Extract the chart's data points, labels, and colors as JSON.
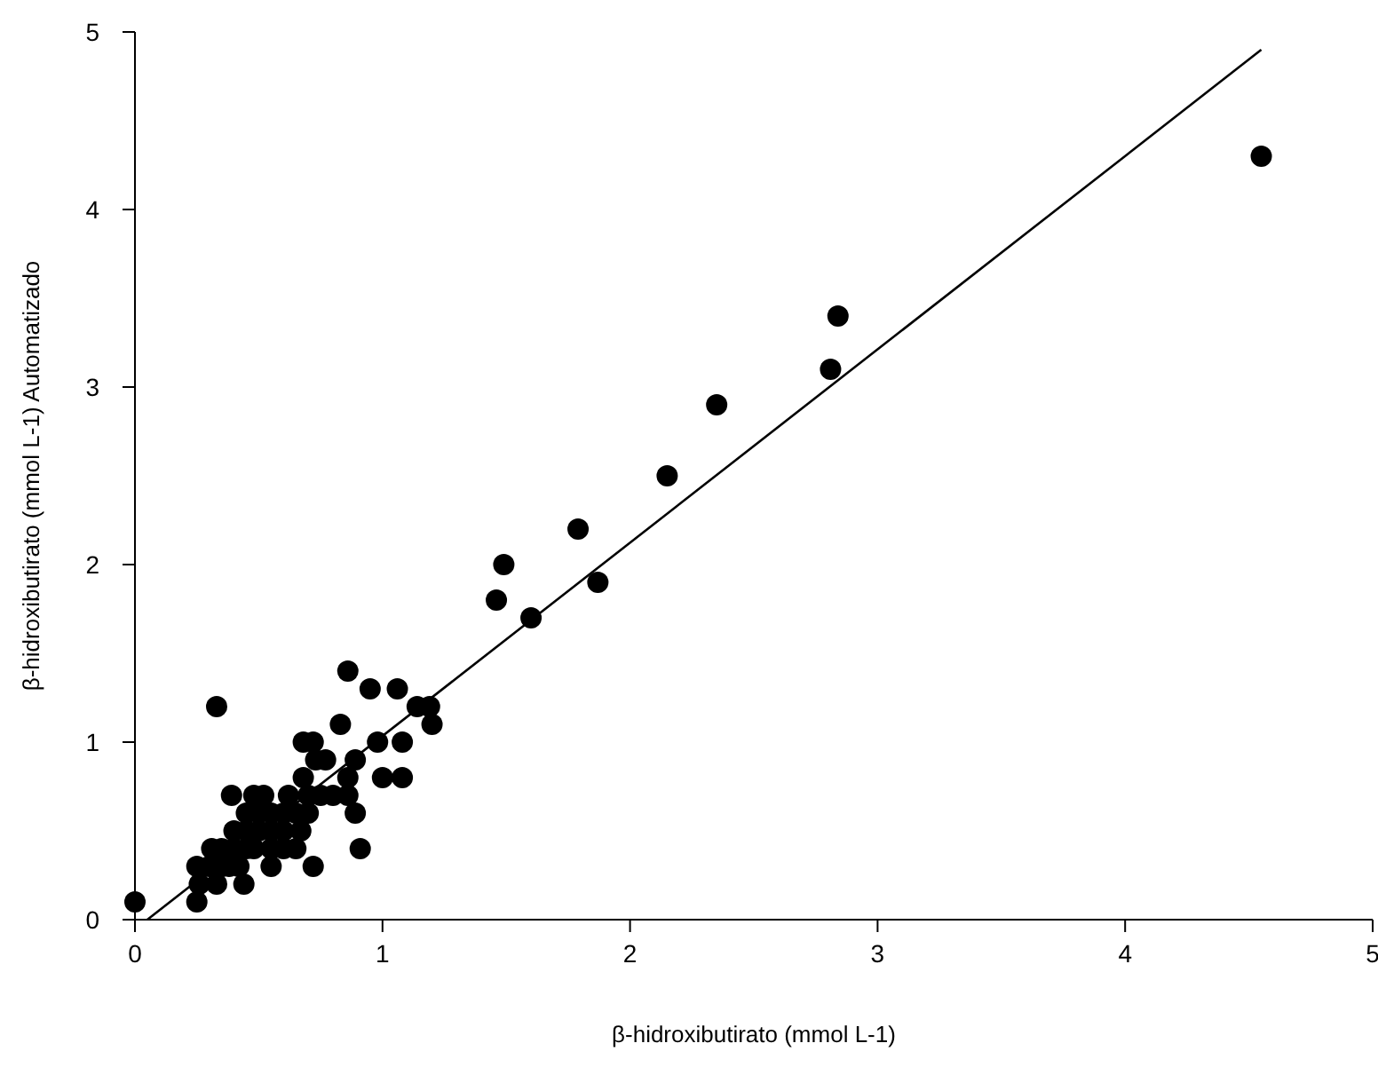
{
  "chart_data": {
    "type": "scatter",
    "xlabel": "β-hidroxibutirato (mmol L-1)",
    "ylabel": "β-hidroxibutirato (mmol L-1) Automatizado",
    "xlim": [
      0,
      5
    ],
    "ylim": [
      0,
      5
    ],
    "xticks": [
      0,
      1,
      2,
      3,
      4,
      5
    ],
    "yticks": [
      0,
      1,
      2,
      3,
      4,
      5
    ],
    "series": [
      {
        "color": "#000000",
        "marker": "circle",
        "x": [
          0,
          0.33,
          0.86,
          0.95,
          1.06,
          1.14,
          1.19,
          1.2,
          0.83,
          0.98,
          1.08,
          0.72,
          0.68,
          0.73,
          0.77,
          0.89,
          1.0,
          1.08,
          0.86,
          0.68,
          0.8,
          0.86,
          0.39,
          0.48,
          0.52,
          0.89,
          0.91,
          0.72,
          0.55,
          0.44,
          0.33,
          0.25,
          0.25,
          0.65,
          0.31,
          0.26,
          0.3,
          0.35,
          0.35,
          0.4,
          0.4,
          0.42,
          0.45,
          0.45,
          0.48,
          0.5,
          0.5,
          0.55,
          0.55,
          0.6,
          0.6,
          0.62,
          0.65,
          0.45,
          0.38,
          0.55,
          0.6,
          0.7,
          0.7,
          0.75,
          0.67,
          1.46,
          1.49,
          1.6,
          1.79,
          1.87,
          2.15,
          2.35,
          2.81,
          2.84,
          4.55
        ],
        "values": [
          0.1,
          1.2,
          1.4,
          1.3,
          1.3,
          1.2,
          1.2,
          1.1,
          1.1,
          1.0,
          1.0,
          1.0,
          1.0,
          0.9,
          0.9,
          0.9,
          0.8,
          0.8,
          0.8,
          0.8,
          0.7,
          0.7,
          0.7,
          0.7,
          0.7,
          0.6,
          0.4,
          0.3,
          0.3,
          0.2,
          0.2,
          0.1,
          0.3,
          0.4,
          0.4,
          0.2,
          0.3,
          0.3,
          0.4,
          0.4,
          0.5,
          0.3,
          0.5,
          0.6,
          0.4,
          0.5,
          0.6,
          0.5,
          0.6,
          0.5,
          0.6,
          0.7,
          0.6,
          0.4,
          0.3,
          0.4,
          0.4,
          0.6,
          0.7,
          0.7,
          0.5,
          1.8,
          2.0,
          1.7,
          2.2,
          1.9,
          2.5,
          2.9,
          3.1,
          3.4,
          4.3
        ]
      },
      {
        "type": "line",
        "color": "#000000",
        "x": [
          0.05,
          4.55
        ],
        "values": [
          0,
          4.9
        ]
      }
    ]
  }
}
